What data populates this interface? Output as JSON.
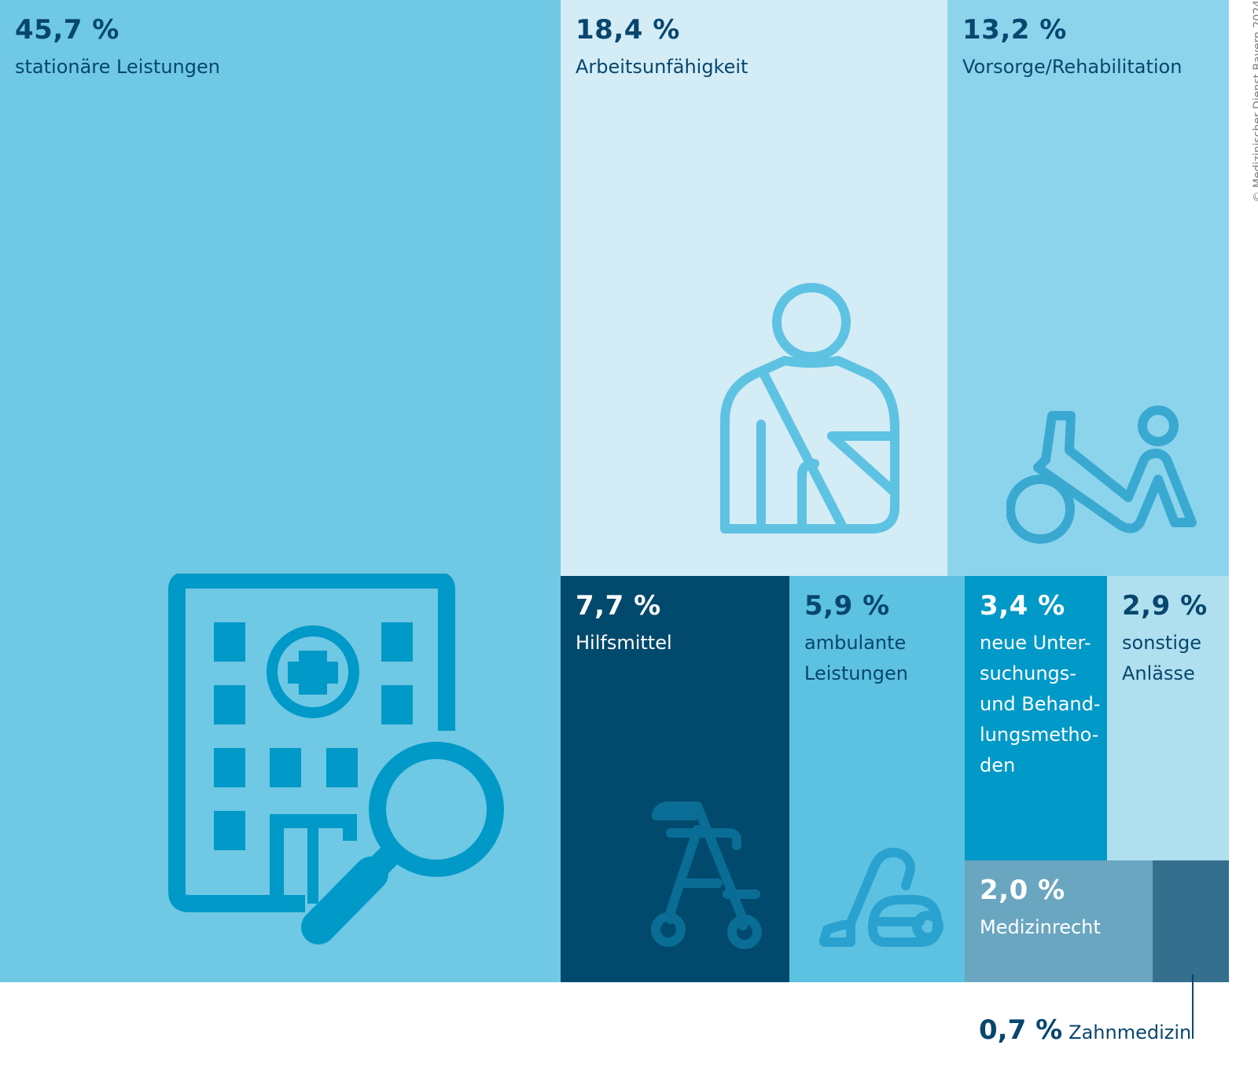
{
  "chart_data": {
    "type": "treemap",
    "unit": "%",
    "segments": [
      {
        "key": "stationaer",
        "value": "45,7 %",
        "share": 45.7,
        "label": "stationäre Leistungen",
        "color": "#6fc8e4",
        "text_color": "#07466e",
        "icon": "hospital-search-icon"
      },
      {
        "key": "au",
        "value": "18,4 %",
        "share": 18.4,
        "label": "Arbeitsunfähigkeit",
        "color": "#d3ecf5",
        "text_color": "#07466e",
        "icon": "arm-sling-icon"
      },
      {
        "key": "reha",
        "value": "13,2 %",
        "share": 13.2,
        "label": "Vorsorge/Rehabilitation",
        "color": "#8cd4ec",
        "text_color": "#07466e",
        "icon": "rehabilitation-exercise-icon"
      },
      {
        "key": "hilfsmittel",
        "value": "7,7 %",
        "share": 7.7,
        "label": "Hilfsmittel",
        "color": "#014a6d",
        "text_color": "#ffffff",
        "icon": "rollator-icon"
      },
      {
        "key": "ambulant",
        "value": "5,9 %",
        "share": 5.9,
        "label": "ambulante\nLeistungen",
        "color": "#5dc1e2",
        "text_color": "#07466e",
        "icon": "vacuum-cleaner-icon"
      },
      {
        "key": "nub",
        "value": "3,4 %",
        "share": 3.4,
        "label": "neue Unter-\nsuchungs-\nund Behand-\nlungsmetho-\nden",
        "color": "#0099c8",
        "text_color": "#ffffff",
        "icon": ""
      },
      {
        "key": "sonstige",
        "value": "2,9 %",
        "share": 2.9,
        "label": "sonstige\nAnlässe",
        "color": "#b0e0ef",
        "text_color": "#07466e",
        "icon": ""
      },
      {
        "key": "medizinrecht",
        "value": "2,0 %",
        "share": 2.0,
        "label": "Medizinrecht",
        "color": "#6aa6c0",
        "text_color": "#ffffff",
        "icon": ""
      },
      {
        "key": "zahnmedizin",
        "value": "0,7 %",
        "share": 0.7,
        "label": "Zahnmedizin",
        "color": "#346f8e",
        "text_color": "#07466e",
        "icon": "",
        "label_outside": true
      }
    ],
    "copyright": "© Medizinischer Dienst Bayern 2024"
  }
}
